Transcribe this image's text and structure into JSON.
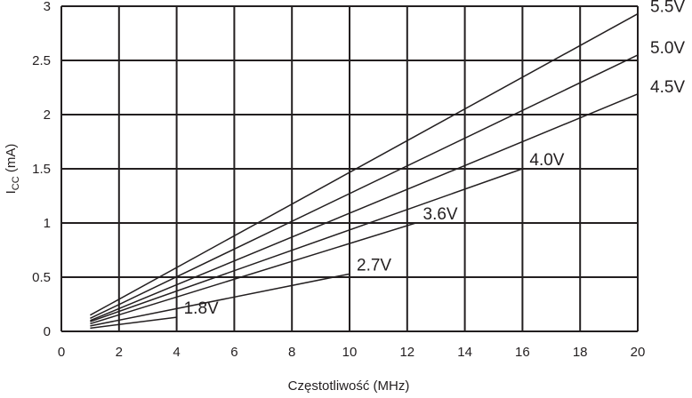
{
  "chart_data": {
    "type": "line",
    "title": "",
    "xlabel": "Częstotliwość (MHz)",
    "ylabel": {
      "main": "I",
      "sub": "CC",
      "unit": " (mA)"
    },
    "xlim": [
      0,
      20
    ],
    "ylim": [
      0,
      3
    ],
    "x_ticks": [
      "0",
      "2",
      "4",
      "6",
      "8",
      "10",
      "12",
      "14",
      "16",
      "18",
      "20"
    ],
    "y_ticks": [
      "0",
      "0.5",
      "1",
      "1.5",
      "2",
      "2.5",
      "3"
    ],
    "grid": true,
    "series": [
      {
        "name": "1.8V",
        "x": [
          1,
          4
        ],
        "y": [
          0.03,
          0.13
        ]
      },
      {
        "name": "2.7V",
        "x": [
          1,
          10
        ],
        "y": [
          0.05,
          0.53
        ]
      },
      {
        "name": "3.6V",
        "x": [
          1,
          12.3
        ],
        "y": [
          0.07,
          1.0
        ]
      },
      {
        "name": "4.0V",
        "x": [
          1,
          16
        ],
        "y": [
          0.09,
          1.5
        ]
      },
      {
        "name": "4.5V",
        "x": [
          1,
          20
        ],
        "y": [
          0.1,
          2.19
        ]
      },
      {
        "name": "5.0V",
        "x": [
          1,
          20
        ],
        "y": [
          0.12,
          2.55
        ]
      },
      {
        "name": "5.5V",
        "x": [
          1,
          20
        ],
        "y": [
          0.15,
          2.93
        ]
      }
    ]
  }
}
